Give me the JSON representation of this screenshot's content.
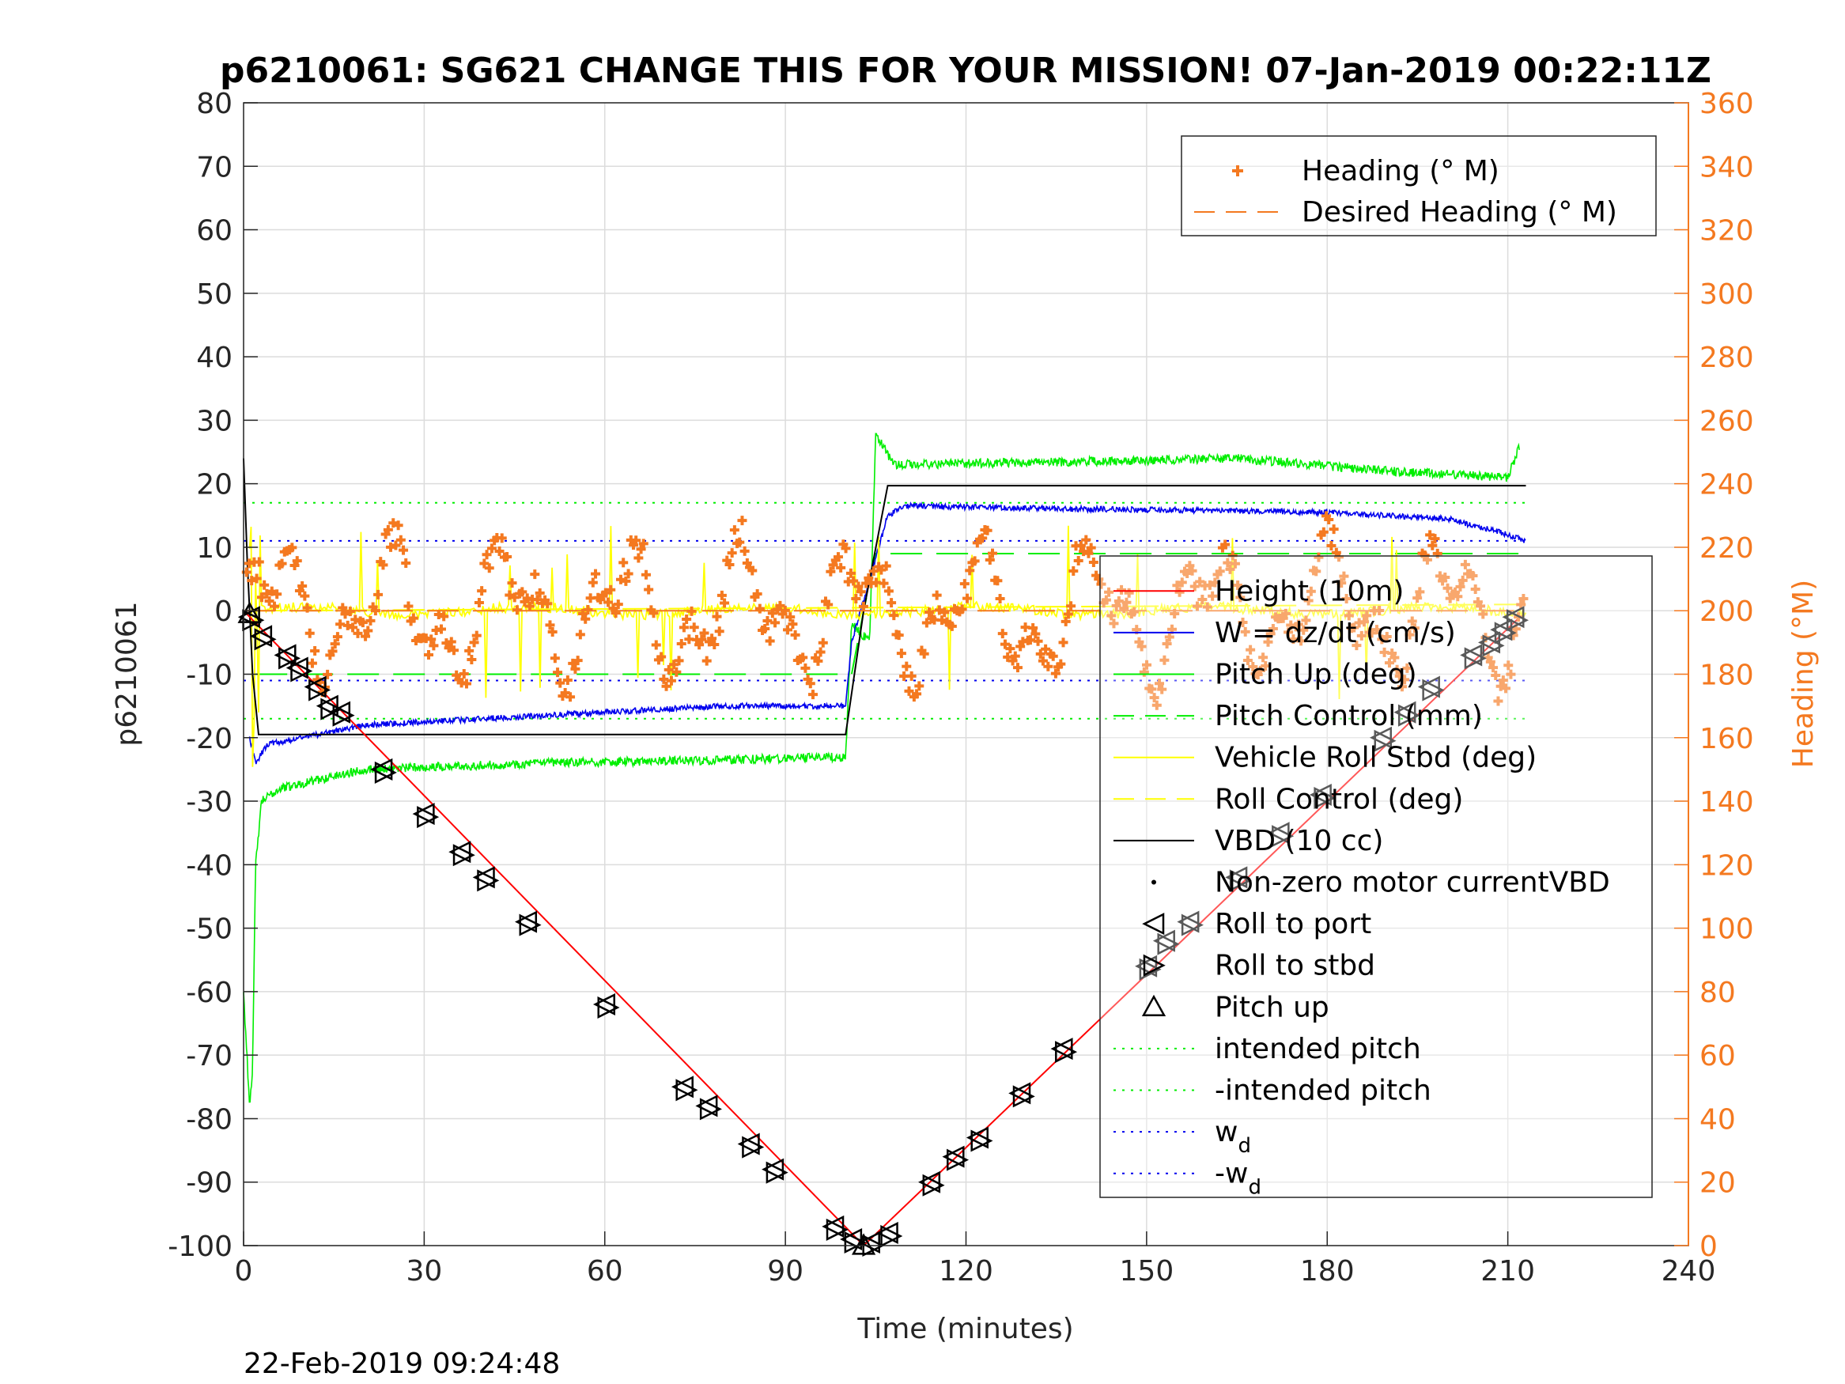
{
  "chart_data": {
    "type": "line",
    "title": "p6210061: SG621 CHANGE THIS FOR YOUR MISSION! 07-Jan-2019 00:22:11Z",
    "xlabel": "Time (minutes)",
    "ylabel": "p6210061",
    "y2label": "Heading (°M)",
    "footer": "22-Feb-2019 09:24:48",
    "xlim": [
      0,
      240
    ],
    "ylim": [
      -100,
      80
    ],
    "y2lim": [
      0,
      360
    ],
    "x_ticks": [
      0,
      30,
      60,
      90,
      120,
      150,
      180,
      210,
      240
    ],
    "y_ticks": [
      -100,
      -90,
      -80,
      -70,
      -60,
      -50,
      -40,
      -30,
      -20,
      -10,
      0,
      10,
      20,
      30,
      40,
      50,
      60,
      70,
      80
    ],
    "y2_ticks": [
      0,
      20,
      40,
      60,
      80,
      100,
      120,
      140,
      160,
      180,
      200,
      220,
      240,
      260,
      280,
      300,
      320,
      340,
      360
    ],
    "grid": true,
    "colors": {
      "height": "#ff0000",
      "w": "#0000ee",
      "pitch": "#00ee00",
      "roll": "#ffff00",
      "vbd": "#000000",
      "heading": "#f47920",
      "axis": "#262626"
    },
    "legend_top": {
      "position": "top-right",
      "entries": [
        {
          "label": "Heading (° M)",
          "marker": "plus",
          "color": "#f47920"
        },
        {
          "label": "Desired Heading (° M)",
          "marker": "dash",
          "color": "#f47920"
        }
      ]
    },
    "legend_main": {
      "position": "right",
      "entries": [
        {
          "label": "Height (10m)",
          "marker": "line",
          "color": "#ff0000"
        },
        {
          "label": "W = dz/dt (cm/s)",
          "marker": "line",
          "color": "#0000ee"
        },
        {
          "label": "Pitch Up (deg)",
          "marker": "line",
          "color": "#00ee00"
        },
        {
          "label": "Pitch Control (mm)",
          "marker": "dash",
          "color": "#00ee00"
        },
        {
          "label": "Vehicle Roll Stbd (deg)",
          "marker": "line",
          "color": "#ffff00"
        },
        {
          "label": "Roll Control (deg)",
          "marker": "dash",
          "color": "#ffff00"
        },
        {
          "label": "VBD (10 cc)",
          "marker": "line",
          "color": "#000000"
        },
        {
          "label": "Non-zero motor currentVBD",
          "marker": "dot",
          "color": "#000000"
        },
        {
          "label": "Roll to port",
          "marker": "tri-left",
          "color": "#000000"
        },
        {
          "label": "Roll to stbd",
          "marker": "tri-right",
          "color": "#000000"
        },
        {
          "label": "Pitch up",
          "marker": "tri-up",
          "color": "#000000"
        },
        {
          "label": "intended pitch",
          "marker": "dot-line",
          "color": "#00ee00"
        },
        {
          "label": "-intended pitch",
          "marker": "dot-line",
          "color": "#00ee00"
        },
        {
          "label": "w",
          "sub": "d",
          "marker": "dot-line",
          "color": "#0000ee"
        },
        {
          "label": "-w",
          "sub": "d",
          "marker": "dot-line",
          "color": "#0000ee"
        }
      ]
    },
    "series": [
      {
        "name": "Height (10m)",
        "points": [
          [
            0,
            0
          ],
          [
            103,
            -100
          ],
          [
            212,
            -1
          ]
        ]
      },
      {
        "name": "VBD (10 cc)",
        "points": [
          [
            0,
            24
          ],
          [
            0.6,
            8
          ],
          [
            1.5,
            -10
          ],
          [
            2.5,
            -19.5
          ],
          [
            100,
            -19.5
          ],
          [
            103,
            0
          ],
          [
            107,
            19.7
          ],
          [
            213,
            19.7
          ]
        ]
      },
      {
        "name": "W = dz/dt (cm/s)",
        "points": [
          [
            1,
            -20
          ],
          [
            2,
            -24
          ],
          [
            4,
            -21
          ],
          [
            10,
            -20
          ],
          [
            20,
            -18
          ],
          [
            40,
            -17
          ],
          [
            60,
            -16
          ],
          [
            80,
            -15
          ],
          [
            100,
            -15
          ],
          [
            101,
            -5
          ],
          [
            104,
            5
          ],
          [
            107,
            15
          ],
          [
            110,
            16.5
          ],
          [
            140,
            16
          ],
          [
            160,
            15.8
          ],
          [
            180,
            15.5
          ],
          [
            200,
            14.5
          ],
          [
            210,
            12
          ],
          [
            213,
            11
          ]
        ]
      },
      {
        "name": "Pitch Up (deg)",
        "points": [
          [
            0,
            -60
          ],
          [
            1,
            -78
          ],
          [
            1.5,
            -72
          ],
          [
            2,
            -40
          ],
          [
            3,
            -30
          ],
          [
            6,
            -28
          ],
          [
            20,
            -25
          ],
          [
            50,
            -24
          ],
          [
            80,
            -23.5
          ],
          [
            100,
            -23
          ],
          [
            101,
            -2
          ],
          [
            104,
            -5
          ],
          [
            105,
            28
          ],
          [
            108,
            23
          ],
          [
            140,
            23.5
          ],
          [
            165,
            24
          ],
          [
            190,
            22
          ],
          [
            210,
            21
          ],
          [
            212,
            26
          ]
        ]
      },
      {
        "name": "Pitch Control (mm)",
        "points": [
          [
            2,
            -10
          ],
          [
            101,
            -10
          ],
          [
            103,
            0
          ],
          [
            105,
            9
          ],
          [
            213,
            9
          ]
        ]
      },
      {
        "name": "Roll Control (deg)",
        "points": [
          [
            2,
            0
          ],
          [
            213,
            1
          ]
        ]
      },
      {
        "name": "intended pitch",
        "points": [
          [
            0,
            17
          ],
          [
            213,
            17
          ]
        ]
      },
      {
        "name": "-intended pitch",
        "points": [
          [
            0,
            -17
          ],
          [
            213,
            -17
          ]
        ]
      },
      {
        "name": "w_d",
        "points": [
          [
            0,
            11
          ],
          [
            213,
            11
          ]
        ]
      },
      {
        "name": "-w_d",
        "points": [
          [
            0,
            -11
          ],
          [
            213,
            -11
          ]
        ]
      },
      {
        "name": "Desired Heading (° M)",
        "axis": "right",
        "points": [
          [
            0,
            200
          ],
          [
            213,
            200
          ]
        ]
      },
      {
        "name": "Heading (° M)",
        "axis": "right",
        "marker": "plus",
        "seed": 621,
        "range": [
          0.5,
          213
        ],
        "mean": 200,
        "amplitude": 22
      }
    ],
    "roll_events": {
      "points": [
        [
          1,
          -1
        ],
        [
          3,
          -4
        ],
        [
          7,
          -7
        ],
        [
          9,
          -9
        ],
        [
          12,
          -12
        ],
        [
          14,
          -15
        ],
        [
          16,
          -16
        ],
        [
          23,
          -25
        ],
        [
          30,
          -32
        ],
        [
          36,
          -38
        ],
        [
          40,
          -42
        ],
        [
          47,
          -49
        ],
        [
          60,
          -62
        ],
        [
          73,
          -75
        ],
        [
          77,
          -78
        ],
        [
          84,
          -84
        ],
        [
          88,
          -88
        ],
        [
          98,
          -97
        ],
        [
          101,
          -99
        ],
        [
          104,
          -99.5
        ],
        [
          107,
          -98
        ],
        [
          114,
          -90
        ],
        [
          118,
          -86
        ],
        [
          122,
          -83
        ],
        [
          129,
          -76
        ],
        [
          136,
          -69
        ],
        [
          150,
          -56
        ],
        [
          153,
          -52
        ],
        [
          157,
          -49
        ],
        [
          165,
          -42
        ],
        [
          172,
          -35
        ],
        [
          179,
          -29
        ],
        [
          189,
          -20
        ],
        [
          193,
          -16
        ],
        [
          197,
          -12
        ],
        [
          204,
          -7
        ],
        [
          207,
          -5
        ],
        [
          209,
          -3
        ],
        [
          211,
          -1
        ]
      ]
    },
    "pitch_up_events": {
      "points": [
        [
          1,
          -0.5
        ],
        [
          103,
          -100
        ]
      ]
    }
  }
}
